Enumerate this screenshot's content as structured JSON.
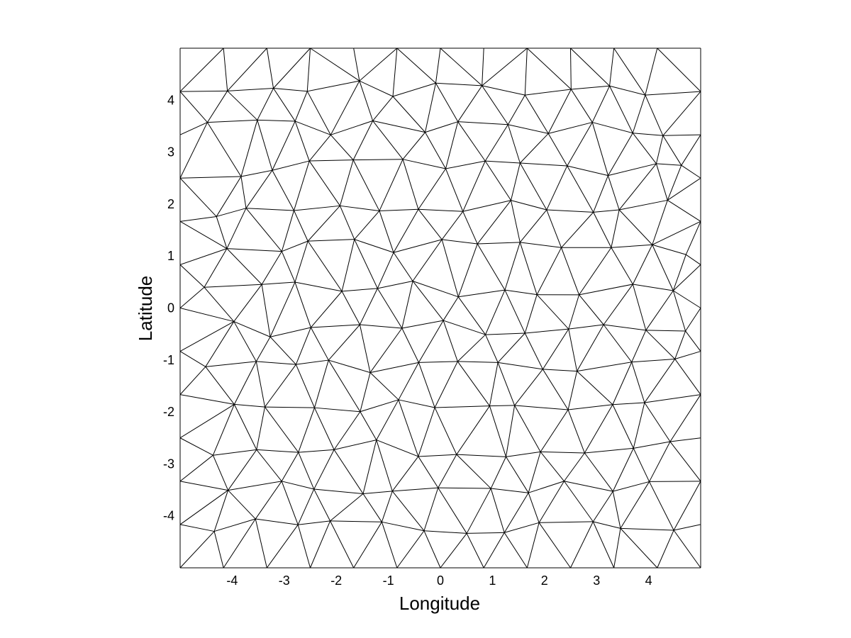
{
  "chart_data": {
    "type": "scatter",
    "subtype": "triangular-mesh",
    "title": "",
    "xlabel": "Longitude",
    "ylabel": "Latitude",
    "xlim": [
      -5,
      5
    ],
    "ylim": [
      -5,
      5
    ],
    "xticks": [
      -4,
      -3,
      -2,
      -1,
      0,
      1,
      2,
      3,
      4
    ],
    "yticks": [
      -4,
      -3,
      -2,
      -1,
      0,
      1,
      2,
      3,
      4
    ],
    "grid": false,
    "line_color": "#000000",
    "background": "#ffffff",
    "boundary_nodes_per_side": 13,
    "interior_node_rows": 12,
    "interior_node_cols": 12
  }
}
